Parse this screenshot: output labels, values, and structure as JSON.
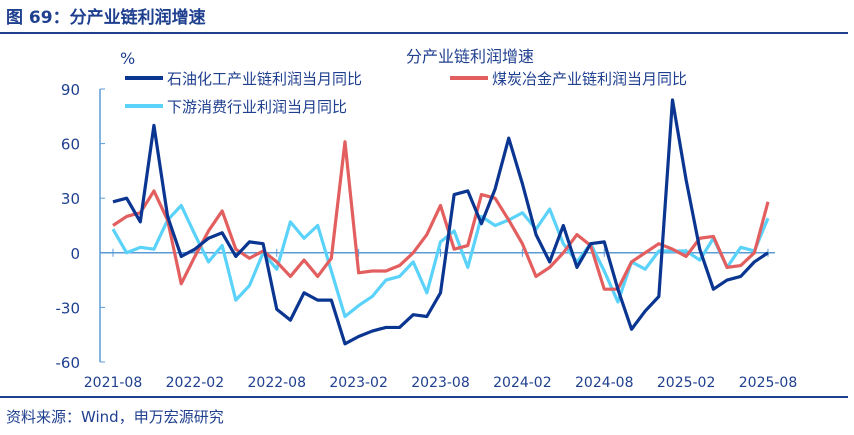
{
  "header": {
    "title": "图 69：分产业链利润增速"
  },
  "footer": {
    "source": "资料来源：Wind，申万宏源研究"
  },
  "chart_data": {
    "type": "line",
    "title": "分产业链利润增速",
    "ylabel": "%",
    "ylim": [
      -60,
      90
    ],
    "yticks": [
      90,
      60,
      30,
      0,
      -30,
      -60
    ],
    "xtick_labels": [
      "2021-08",
      "2022-02",
      "2022-08",
      "2023-02",
      "2023-08",
      "2024-02",
      "2024-08",
      "2025-02",
      "2025-08"
    ],
    "x_start": "2021-08",
    "x_end": "2025-08",
    "legend_position": "top",
    "series": [
      {
        "name": "石油化工产业链利润当月同比",
        "color": "#0a3591",
        "values": [
          28,
          30,
          17,
          70,
          20,
          -2,
          2,
          8,
          11,
          -2,
          6,
          5,
          -31,
          -37,
          -22,
          -26,
          -26,
          -50,
          -46,
          -43,
          -41,
          -41,
          -34,
          -35,
          -22,
          32,
          34,
          16,
          35,
          63,
          38,
          10,
          -5,
          15,
          -8,
          5,
          6,
          -20,
          -42,
          -32,
          -24,
          84,
          40,
          2,
          -20,
          -15,
          -13,
          -5,
          0
        ]
      },
      {
        "name": "煤炭冶金产业链利润当月同比",
        "color": "#e35f5f",
        "values": [
          15,
          20,
          22,
          34,
          18,
          -17,
          -2,
          12,
          23,
          2,
          -3,
          1,
          -5,
          -13,
          -4,
          -13,
          -3,
          61,
          -11,
          -10,
          -10,
          -7,
          0,
          10,
          26,
          2,
          4,
          32,
          30,
          18,
          5,
          -13,
          -8,
          0,
          10,
          4,
          -20,
          -20,
          -5,
          0,
          5,
          2,
          -2,
          8,
          9,
          -8,
          -7,
          0,
          28
        ]
      },
      {
        "name": "下游消费行业利润当月同比",
        "color": "#5ad2fa",
        "values": [
          13,
          0,
          3,
          2,
          18,
          26,
          10,
          -5,
          4,
          -26,
          -18,
          0,
          -9,
          17,
          8,
          15,
          -10,
          -35,
          -29,
          -24,
          -15,
          -13,
          -5,
          -22,
          6,
          12,
          -8,
          20,
          15,
          18,
          22,
          13,
          24,
          5,
          -5,
          5,
          -10,
          -27,
          -5,
          -9,
          1,
          1,
          1,
          -4,
          8,
          -8,
          3,
          1,
          19
        ]
      }
    ]
  }
}
